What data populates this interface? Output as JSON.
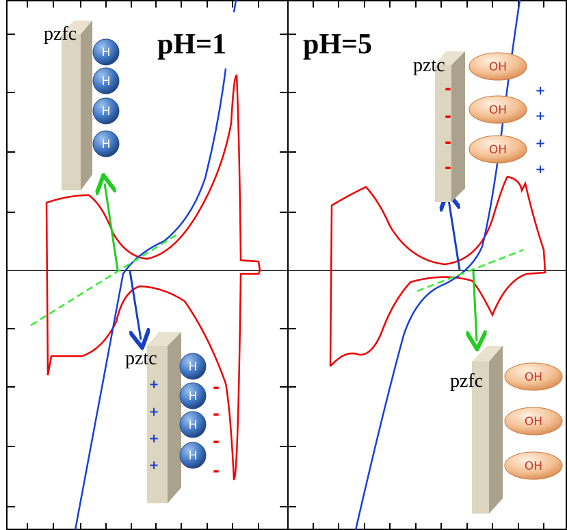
{
  "panels": [
    {
      "title": "pH=1",
      "top_label": "pzfc",
      "top_atoms": [
        "H",
        "H",
        "H",
        "H"
      ],
      "bottom_label": "pztc",
      "bottom_atoms": [
        "H",
        "H",
        "H",
        "H"
      ],
      "bottom_plus": [
        "+",
        "+",
        "+",
        "+"
      ],
      "bottom_minus": [
        "-",
        "-",
        "-",
        "-"
      ]
    },
    {
      "title": "pH=5",
      "top_label": "pztc",
      "top_atoms": [
        "OH",
        "OH",
        "OH"
      ],
      "top_plus": [
        "+",
        "+",
        "+",
        "+"
      ],
      "top_minus": [
        "-",
        "-",
        "-",
        "-"
      ],
      "bottom_label": "pzfc",
      "bottom_atoms": [
        "OH",
        "OH",
        "OH"
      ]
    }
  ]
}
